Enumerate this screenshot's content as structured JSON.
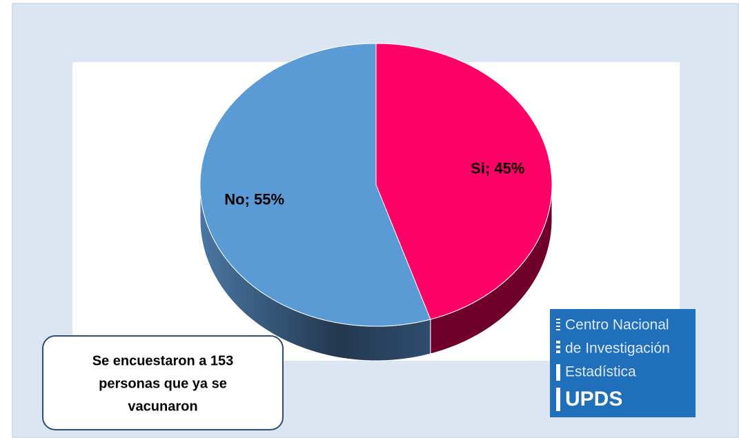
{
  "chart_data": {
    "type": "pie",
    "categories": [
      "Si",
      "No"
    ],
    "values": [
      45,
      55
    ],
    "value_labels": [
      "Si; 45%",
      "No; 55%"
    ],
    "colors": [
      "#ff0066",
      "#5b9bd5"
    ],
    "side_colors": [
      "#6e0029",
      "#2f4d6e"
    ],
    "start_angle": 0,
    "direction": "clockwise",
    "annotation": [
      "Se encuestaron a 153",
      "personas que ya se",
      "vacunaron"
    ],
    "logo": [
      "Centro Nacional",
      "de Investigación",
      "Estadística",
      "UPDS"
    ]
  }
}
